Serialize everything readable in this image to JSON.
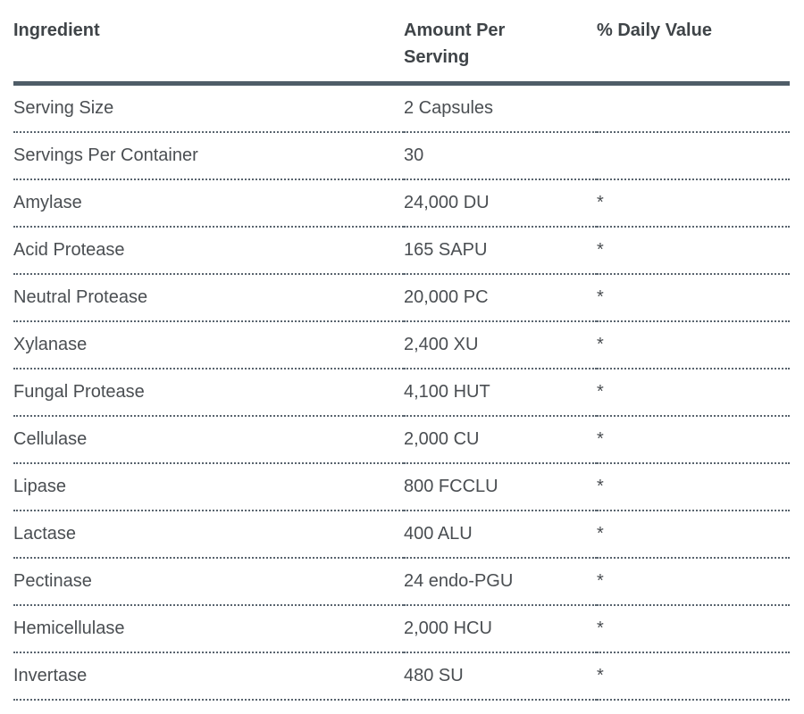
{
  "table": {
    "columns": [
      {
        "key": "ingredient",
        "label": "Ingredient"
      },
      {
        "key": "amount",
        "label": "Amount Per Serving"
      },
      {
        "key": "daily_value",
        "label": "% Daily Value"
      }
    ],
    "rows": [
      {
        "ingredient": "Serving Size",
        "amount": "2 Capsules",
        "daily_value": ""
      },
      {
        "ingredient": "Servings Per Container",
        "amount": "30",
        "daily_value": ""
      },
      {
        "ingredient": "Amylase",
        "amount": "24,000 DU",
        "daily_value": "*"
      },
      {
        "ingredient": "Acid Protease",
        "amount": "165 SAPU",
        "daily_value": "*"
      },
      {
        "ingredient": "Neutral Protease",
        "amount": "20,000 PC",
        "daily_value": "*"
      },
      {
        "ingredient": "Xylanase",
        "amount": "2,400 XU",
        "daily_value": "*"
      },
      {
        "ingredient": "Fungal Protease",
        "amount": "4,100 HUT",
        "daily_value": "*"
      },
      {
        "ingredient": "Cellulase",
        "amount": "2,000 CU",
        "daily_value": "*"
      },
      {
        "ingredient": "Lipase",
        "amount": "800 FCCLU",
        "daily_value": "*"
      },
      {
        "ingredient": "Lactase",
        "amount": "400 ALU",
        "daily_value": "*"
      },
      {
        "ingredient": "Pectinase",
        "amount": "24 endo-PGU",
        "daily_value": "*"
      },
      {
        "ingredient": "Hemicellulase",
        "amount": "2,000 HCU",
        "daily_value": "*"
      },
      {
        "ingredient": "Invertase",
        "amount": "480 SU",
        "daily_value": "*"
      }
    ],
    "colors": {
      "header_border": "#4f5d68",
      "row_border": "#59646e",
      "header_text": "#3f4448",
      "body_text": "#4a4e52"
    }
  }
}
